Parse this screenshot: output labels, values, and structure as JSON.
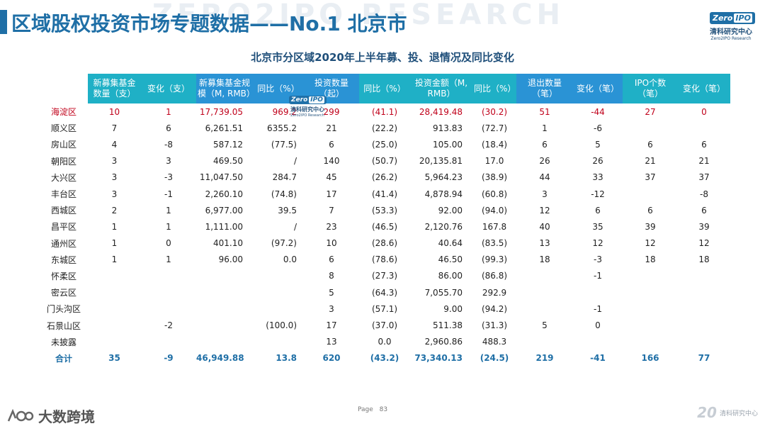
{
  "page": {
    "title": "区域股权投资市场专题数据——No.1 北京市",
    "watermark": "ZERO2IPO RESEARCH",
    "subtitle": "北京市分区域2020年上半年募、投、退情况及同比变化"
  },
  "logo": {
    "brand_left": "Zero",
    "brand_right": "IPO",
    "name_cn": "清科研究中心",
    "name_en": "Zero2IPO Research"
  },
  "table": {
    "headers": [
      "",
      "新募集基金数量（支）",
      "变化（支）",
      "新募集基金规模（M, RMB）",
      "同比（%）",
      "投资数量（起）",
      "同比（%）",
      "投资金额（M, RMB）",
      "同比（%）",
      "退出数量（笔）",
      "变化（笔）",
      "IPO个数（笔）",
      "变化（笔）"
    ],
    "rows": [
      [
        "海淀区",
        "10",
        "1",
        "17,739.05",
        "969.2",
        "299",
        "(41.1)",
        "28,419.48",
        "(30.2)",
        "51",
        "-44",
        "27",
        "0"
      ],
      [
        "顺义区",
        "7",
        "6",
        "6,261.51",
        "6355.2",
        "21",
        "(22.2)",
        "913.83",
        "(72.7)",
        "1",
        "-6",
        "",
        ""
      ],
      [
        "房山区",
        "4",
        "-8",
        "587.12",
        "(77.5)",
        "6",
        "(25.0)",
        "105.00",
        "(18.4)",
        "6",
        "5",
        "6",
        "6"
      ],
      [
        "朝阳区",
        "3",
        "3",
        "469.50",
        "/",
        "140",
        "(50.7)",
        "20,135.81",
        "17.0",
        "26",
        "26",
        "21",
        "21"
      ],
      [
        "大兴区",
        "3",
        "-3",
        "11,047.50",
        "284.7",
        "45",
        "(26.2)",
        "5,964.23",
        "(38.9)",
        "44",
        "33",
        "37",
        "37"
      ],
      [
        "丰台区",
        "3",
        "-1",
        "2,260.10",
        "(74.8)",
        "17",
        "(41.4)",
        "4,878.94",
        "(60.8)",
        "3",
        "-12",
        "",
        "-8"
      ],
      [
        "西城区",
        "2",
        "1",
        "6,977.00",
        "39.5",
        "7",
        "(53.3)",
        "92.00",
        "(94.0)",
        "12",
        "6",
        "6",
        "6"
      ],
      [
        "昌平区",
        "1",
        "1",
        "1,111.00",
        "/",
        "23",
        "(46.5)",
        "2,120.76",
        "167.8",
        "40",
        "35",
        "39",
        "39"
      ],
      [
        "通州区",
        "1",
        "0",
        "401.10",
        "(97.2)",
        "10",
        "(28.6)",
        "40.64",
        "(83.5)",
        "13",
        "12",
        "12",
        "12"
      ],
      [
        "东城区",
        "1",
        "1",
        "96.00",
        "0.0",
        "6",
        "(78.6)",
        "46.50",
        "(99.3)",
        "18",
        "-3",
        "18",
        "18"
      ],
      [
        "怀柔区",
        "",
        "",
        "",
        "",
        "8",
        "(27.3)",
        "86.00",
        "(86.8)",
        "",
        "-1",
        "",
        ""
      ],
      [
        "密云区",
        "",
        "",
        "",
        "",
        "5",
        "(64.3)",
        "7,055.70",
        "292.9",
        "",
        "",
        "",
        ""
      ],
      [
        "门头沟区",
        "",
        "",
        "",
        "",
        "3",
        "(57.1)",
        "9.00",
        "(94.2)",
        "",
        "-1",
        "",
        ""
      ],
      [
        "石景山区",
        "",
        "-2",
        "",
        "(100.0)",
        "17",
        "(37.0)",
        "511.38",
        "(31.3)",
        "5",
        "0",
        "",
        ""
      ],
      [
        "未披露",
        "",
        "",
        "",
        "",
        "13",
        "0.0",
        "2,960.86",
        "488.3",
        "",
        "",
        "",
        ""
      ],
      [
        "合计",
        "35",
        "-9",
        "46,949.88",
        "13.8",
        "620",
        "(43.2)",
        "73,340.13",
        "(24.5)",
        "219",
        "-41",
        "166",
        "77"
      ]
    ]
  },
  "footer": {
    "page_label": "Page",
    "page_number": "83",
    "left_brand": "大数跨境",
    "right_number": "20",
    "right_text": "清科研究中心"
  }
}
